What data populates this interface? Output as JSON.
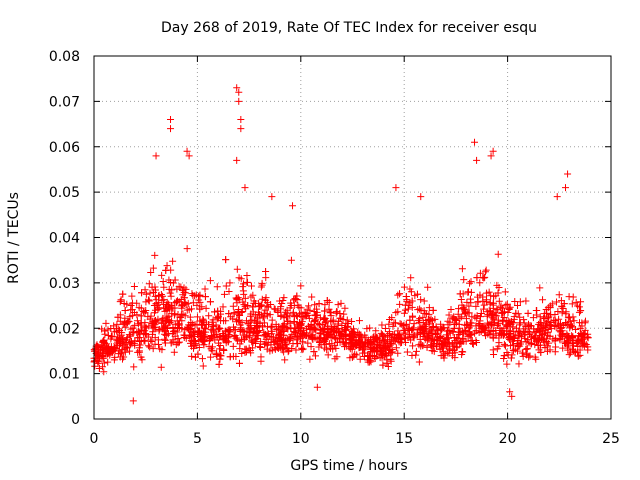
{
  "chart_data": {
    "type": "scatter",
    "title": "Day 268 of 2019, Rate Of TEC Index for receiver esqu",
    "xlabel": "GPS time / hours",
    "ylabel": "ROTI / TECUs",
    "xlim": [
      0,
      25
    ],
    "ylim": [
      0,
      0.08
    ],
    "xticks": [
      "0",
      "5",
      "10",
      "15",
      "20",
      "25"
    ],
    "yticks": [
      "0",
      "0.01",
      "0.02",
      "0.03",
      "0.04",
      "0.05",
      "0.06",
      "0.07",
      "0.08"
    ],
    "grid": true,
    "marker": "+",
    "series": [
      {
        "name": "ROTI",
        "color": "#ff0000",
        "profile_hours": [
          0,
          1,
          2,
          3,
          4,
          5,
          6,
          7,
          8,
          9,
          10,
          11,
          12,
          13,
          14,
          15,
          16,
          17,
          18,
          19,
          20,
          21,
          22,
          23,
          24
        ],
        "profile_median": [
          0.014,
          0.017,
          0.019,
          0.022,
          0.022,
          0.02,
          0.019,
          0.021,
          0.02,
          0.02,
          0.02,
          0.02,
          0.019,
          0.016,
          0.016,
          0.02,
          0.02,
          0.016,
          0.021,
          0.022,
          0.02,
          0.018,
          0.02,
          0.019,
          0.018
        ],
        "profile_upper": [
          0.02,
          0.03,
          0.038,
          0.048,
          0.046,
          0.04,
          0.038,
          0.048,
          0.04,
          0.042,
          0.036,
          0.034,
          0.03,
          0.024,
          0.026,
          0.04,
          0.036,
          0.03,
          0.046,
          0.044,
          0.036,
          0.032,
          0.036,
          0.04,
          0.028
        ],
        "profile_lower": [
          0.01,
          0.008,
          0.008,
          0.01,
          0.011,
          0.009,
          0.008,
          0.009,
          0.009,
          0.01,
          0.01,
          0.01,
          0.01,
          0.01,
          0.01,
          0.01,
          0.011,
          0.011,
          0.011,
          0.011,
          0.007,
          0.008,
          0.01,
          0.01,
          0.011
        ],
        "n_points": 2400,
        "peaks": [
          {
            "x": 3.0,
            "y": 0.058
          },
          {
            "x": 3.7,
            "y": 0.066
          },
          {
            "x": 3.7,
            "y": 0.064
          },
          {
            "x": 4.5,
            "y": 0.059
          },
          {
            "x": 4.6,
            "y": 0.058
          },
          {
            "x": 6.9,
            "y": 0.073
          },
          {
            "x": 7.0,
            "y": 0.072
          },
          {
            "x": 7.0,
            "y": 0.07
          },
          {
            "x": 7.1,
            "y": 0.066
          },
          {
            "x": 7.1,
            "y": 0.064
          },
          {
            "x": 6.9,
            "y": 0.057
          },
          {
            "x": 7.3,
            "y": 0.051
          },
          {
            "x": 8.6,
            "y": 0.049
          },
          {
            "x": 9.6,
            "y": 0.047
          },
          {
            "x": 14.6,
            "y": 0.051
          },
          {
            "x": 15.8,
            "y": 0.049
          },
          {
            "x": 18.4,
            "y": 0.061
          },
          {
            "x": 18.5,
            "y": 0.057
          },
          {
            "x": 19.3,
            "y": 0.059
          },
          {
            "x": 19.2,
            "y": 0.058
          },
          {
            "x": 22.9,
            "y": 0.054
          },
          {
            "x": 22.8,
            "y": 0.051
          },
          {
            "x": 22.4,
            "y": 0.049
          },
          {
            "x": 20.1,
            "y": 0.006
          },
          {
            "x": 20.2,
            "y": 0.005
          },
          {
            "x": 1.9,
            "y": 0.004
          },
          {
            "x": 10.8,
            "y": 0.007
          }
        ]
      }
    ]
  }
}
